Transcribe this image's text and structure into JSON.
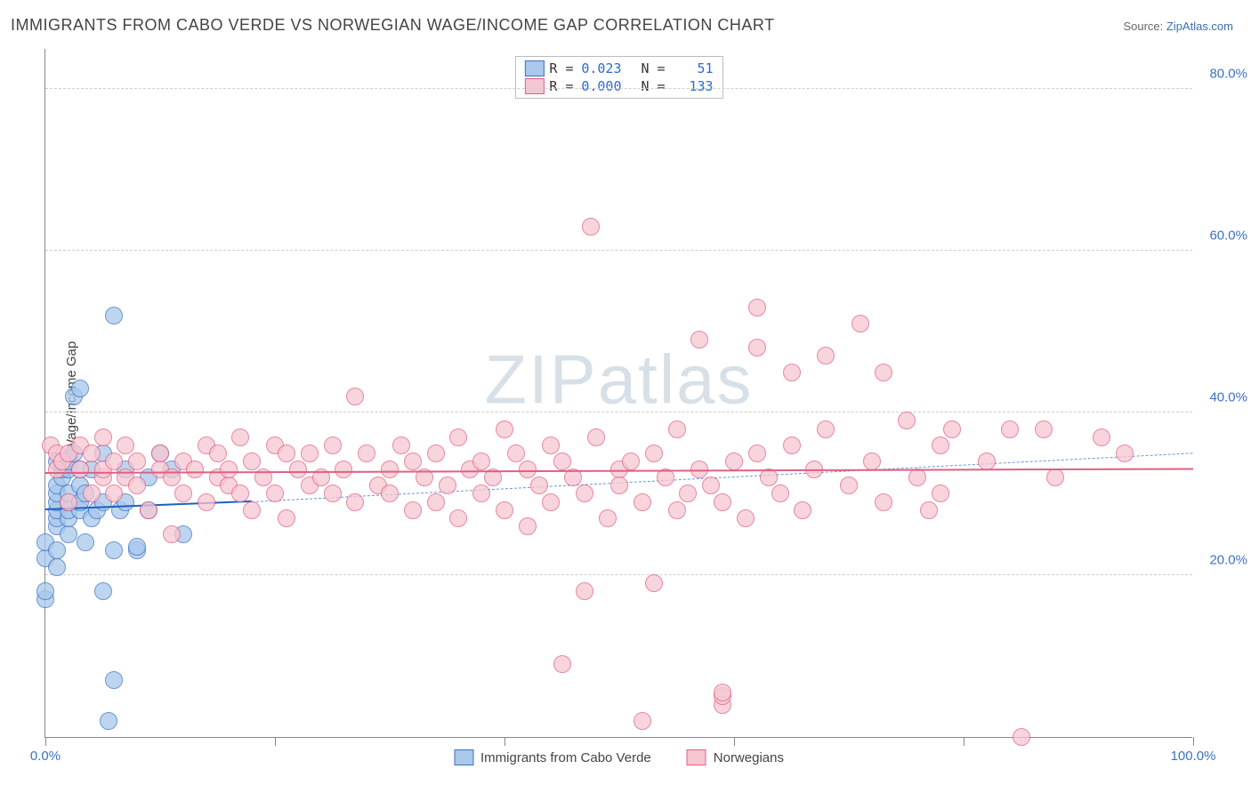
{
  "title": "IMMIGRANTS FROM CABO VERDE VS NORWEGIAN WAGE/INCOME GAP CORRELATION CHART",
  "source_prefix": "Source: ",
  "source_link": "ZipAtlas.com",
  "chart": {
    "type": "scatter",
    "ylabel": "Wage/Income Gap",
    "xlim": [
      0,
      100
    ],
    "ylim": [
      0,
      85
    ],
    "ytick_labels": [
      "20.0%",
      "40.0%",
      "60.0%",
      "80.0%"
    ],
    "ytick_values": [
      20,
      40,
      60,
      80
    ],
    "xtick_values": [
      0,
      20,
      40,
      60,
      80,
      100
    ],
    "xtick_end_labels": [
      "0.0%",
      "100.0%"
    ],
    "grid_color": "#cccccc",
    "background_color": "#ffffff",
    "marker_radius": 10,
    "series": [
      {
        "name": "Immigrants from Cabo Verde",
        "fill": "#a9c8ec",
        "stroke": "#3b72c4",
        "stroke_width": 1.2,
        "R": "0.023",
        "N": "51",
        "regression": {
          "x0": 0,
          "y0": 28,
          "x1": 18,
          "y1": 29,
          "color": "#1f5fbf",
          "width": 2.5,
          "dash": false
        },
        "regression_ext": {
          "x0": 18,
          "y0": 29,
          "x1": 100,
          "y1": 35,
          "color": "#6a95d6",
          "width": 1.5,
          "dash": true
        },
        "points": [
          [
            0,
            17
          ],
          [
            0,
            18
          ],
          [
            0,
            22
          ],
          [
            0,
            24
          ],
          [
            1,
            26
          ],
          [
            1,
            27
          ],
          [
            1,
            28
          ],
          [
            1,
            29
          ],
          [
            1,
            30
          ],
          [
            1,
            31
          ],
          [
            1.5,
            32
          ],
          [
            1.5,
            33
          ],
          [
            1,
            34
          ],
          [
            1,
            21
          ],
          [
            1,
            23
          ],
          [
            2,
            25
          ],
          [
            2,
            27
          ],
          [
            2,
            28
          ],
          [
            2,
            29
          ],
          [
            2,
            30
          ],
          [
            2,
            33
          ],
          [
            2,
            34
          ],
          [
            2.5,
            35
          ],
          [
            2.5,
            42
          ],
          [
            3,
            43
          ],
          [
            3,
            28
          ],
          [
            3,
            29
          ],
          [
            3,
            31
          ],
          [
            3,
            33
          ],
          [
            3.5,
            30
          ],
          [
            3.5,
            24
          ],
          [
            4,
            27
          ],
          [
            4,
            33
          ],
          [
            4.5,
            28
          ],
          [
            5,
            18
          ],
          [
            5,
            29
          ],
          [
            5,
            35
          ],
          [
            5.5,
            2
          ],
          [
            6,
            23
          ],
          [
            6,
            52
          ],
          [
            6,
            7
          ],
          [
            6.5,
            28
          ],
          [
            7,
            29
          ],
          [
            7,
            33
          ],
          [
            8,
            23
          ],
          [
            8,
            23.5
          ],
          [
            9,
            28
          ],
          [
            9,
            32
          ],
          [
            10,
            35
          ],
          [
            11,
            33
          ],
          [
            12,
            25
          ]
        ]
      },
      {
        "name": "Norwegians",
        "fill": "#f6c7d2",
        "stroke": "#e15f82",
        "stroke_width": 1.2,
        "R": "0.000",
        "N": "133",
        "regression": {
          "x0": 0,
          "y0": 32.5,
          "x1": 100,
          "y1": 33,
          "color": "#e15f82",
          "width": 2.5,
          "dash": false
        },
        "points": [
          [
            0.5,
            36
          ],
          [
            1,
            35
          ],
          [
            1,
            33
          ],
          [
            1.5,
            34
          ],
          [
            2,
            29
          ],
          [
            2,
            35
          ],
          [
            3,
            33
          ],
          [
            3,
            36
          ],
          [
            4,
            30
          ],
          [
            4,
            35
          ],
          [
            5,
            32
          ],
          [
            5,
            33
          ],
          [
            5,
            37
          ],
          [
            6,
            30
          ],
          [
            6,
            34
          ],
          [
            7,
            32
          ],
          [
            7,
            36
          ],
          [
            8,
            31
          ],
          [
            8,
            34
          ],
          [
            9,
            28
          ],
          [
            10,
            33
          ],
          [
            10,
            35
          ],
          [
            11,
            25
          ],
          [
            11,
            32
          ],
          [
            12,
            30
          ],
          [
            12,
            34
          ],
          [
            13,
            33
          ],
          [
            14,
            29
          ],
          [
            14,
            36
          ],
          [
            15,
            32
          ],
          [
            15,
            35
          ],
          [
            16,
            31
          ],
          [
            16,
            33
          ],
          [
            17,
            30
          ],
          [
            17,
            37
          ],
          [
            18,
            28
          ],
          [
            18,
            34
          ],
          [
            19,
            32
          ],
          [
            20,
            30
          ],
          [
            20,
            36
          ],
          [
            21,
            27
          ],
          [
            21,
            35
          ],
          [
            22,
            33
          ],
          [
            23,
            31
          ],
          [
            23,
            35
          ],
          [
            24,
            32
          ],
          [
            25,
            30
          ],
          [
            25,
            36
          ],
          [
            26,
            33
          ],
          [
            27,
            29
          ],
          [
            27,
            42
          ],
          [
            28,
            35
          ],
          [
            29,
            31
          ],
          [
            30,
            33
          ],
          [
            30,
            30
          ],
          [
            31,
            36
          ],
          [
            32,
            28
          ],
          [
            32,
            34
          ],
          [
            33,
            32
          ],
          [
            34,
            29
          ],
          [
            34,
            35
          ],
          [
            35,
            31
          ],
          [
            36,
            37
          ],
          [
            36,
            27
          ],
          [
            37,
            33
          ],
          [
            38,
            30
          ],
          [
            38,
            34
          ],
          [
            39,
            32
          ],
          [
            40,
            38
          ],
          [
            40,
            28
          ],
          [
            41,
            35
          ],
          [
            42,
            26
          ],
          [
            42,
            33
          ],
          [
            43,
            31
          ],
          [
            44,
            29
          ],
          [
            44,
            36
          ],
          [
            45,
            9
          ],
          [
            45,
            34
          ],
          [
            46,
            32
          ],
          [
            47,
            30
          ],
          [
            47,
            18
          ],
          [
            47.5,
            63
          ],
          [
            48,
            37
          ],
          [
            49,
            27
          ],
          [
            50,
            33
          ],
          [
            50,
            31
          ],
          [
            51,
            34
          ],
          [
            52,
            29
          ],
          [
            52,
            2
          ],
          [
            53,
            19
          ],
          [
            53,
            35
          ],
          [
            54,
            32
          ],
          [
            55,
            28
          ],
          [
            55,
            38
          ],
          [
            56,
            30
          ],
          [
            57,
            49
          ],
          [
            57,
            33
          ],
          [
            58,
            31
          ],
          [
            59,
            4
          ],
          [
            59,
            5
          ],
          [
            59,
            5.5
          ],
          [
            59,
            29
          ],
          [
            60,
            34
          ],
          [
            61,
            27
          ],
          [
            62,
            35
          ],
          [
            62,
            48
          ],
          [
            62,
            53
          ],
          [
            63,
            32
          ],
          [
            64,
            30
          ],
          [
            65,
            36
          ],
          [
            65,
            45
          ],
          [
            66,
            28
          ],
          [
            67,
            33
          ],
          [
            68,
            38
          ],
          [
            68,
            47
          ],
          [
            70,
            31
          ],
          [
            71,
            51
          ],
          [
            72,
            34
          ],
          [
            73,
            29
          ],
          [
            73,
            45
          ],
          [
            75,
            39
          ],
          [
            76,
            32
          ],
          [
            77,
            28
          ],
          [
            78,
            36
          ],
          [
            78,
            30
          ],
          [
            79,
            38
          ],
          [
            82,
            34
          ],
          [
            84,
            38
          ],
          [
            85,
            0
          ],
          [
            87,
            38
          ],
          [
            88,
            32
          ],
          [
            92,
            37
          ],
          [
            94,
            35
          ]
        ]
      }
    ],
    "watermark": {
      "text1": "ZIP",
      "text2": "atlas"
    },
    "stat_box": {
      "r_label": "R =",
      "n_label": "N ="
    }
  }
}
